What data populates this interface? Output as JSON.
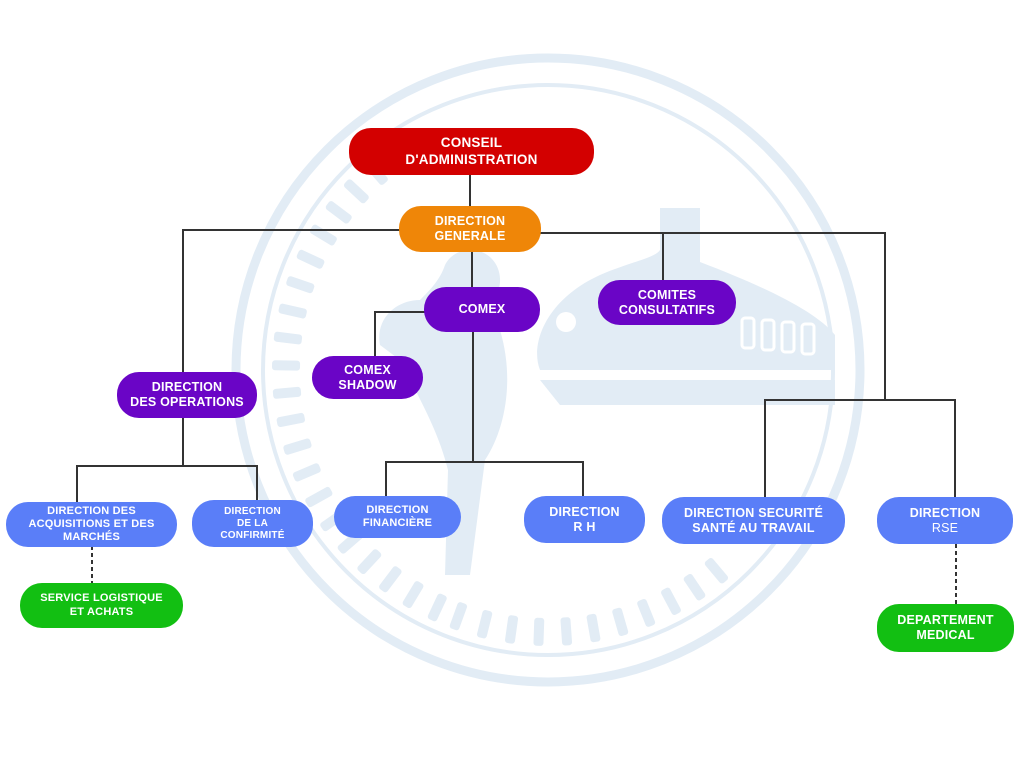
{
  "watermark": {
    "name": "emblem-watermark",
    "color": "#e2ecf5"
  },
  "colors": {
    "board": "#d30000",
    "general": "#ef8608",
    "committee": "#6a05c6",
    "direction": "#5a7ef8",
    "service": "#12bf12",
    "line": "#333333"
  },
  "nodes": {
    "conseil": {
      "line1": "CONSEIL",
      "line2": "D'ADMINISTRATION"
    },
    "direction_generale": {
      "line1": "DIRECTION",
      "line2": "GENERALE"
    },
    "comex": {
      "line1": "COMEX"
    },
    "comites": {
      "line1": "COMITES",
      "line2": "CONSULTATIFS"
    },
    "comex_shadow": {
      "line1": "COMEX",
      "line2": "SHADOW"
    },
    "direction_operations": {
      "line1": "DIRECTION",
      "line2": "DES OPERATIONS"
    },
    "direction_acquisitions": {
      "line1": "DIRECTION DES",
      "line2": "ACQUISITIONS ET DES",
      "line3": "MARCHÉS"
    },
    "direction_conformite": {
      "line1": "DIRECTION",
      "line2": "DE LA",
      "line3": "CONFIRMITÉ"
    },
    "direction_financiere": {
      "line1": "DIRECTION",
      "line2": "FINANCIÈRE"
    },
    "direction_rh": {
      "line1": "DIRECTION",
      "line2": "R H"
    },
    "direction_securite": {
      "line1": "DIRECTION SECURITÉ",
      "line2": "SANTÉ AU TRAVAIL"
    },
    "direction_rse": {
      "line1": "DIRECTION",
      "line2": "RSE"
    },
    "service_logistique": {
      "line1": "SERVICE LOGISTIQUE",
      "line2": "ET ACHATS"
    },
    "departement_medical": {
      "line1": "DEPARTEMENT",
      "line2": "MEDICAL"
    }
  }
}
